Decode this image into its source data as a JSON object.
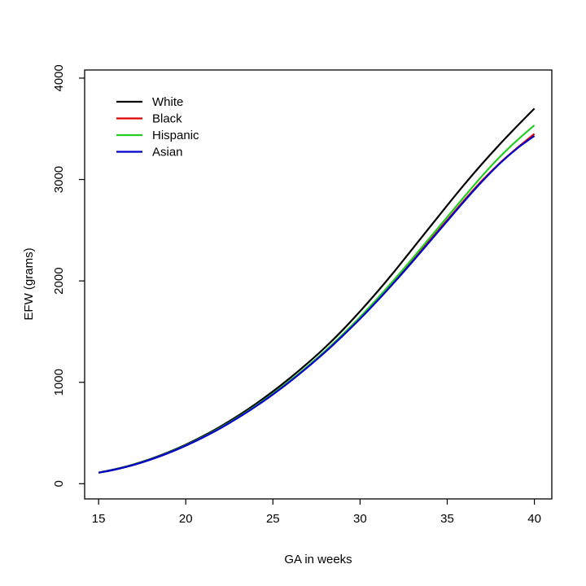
{
  "chart_data": {
    "type": "line",
    "xlabel": "GA in weeks",
    "ylabel": "EFW (grams)",
    "xlim": [
      14.2,
      41.0
    ],
    "ylim": [
      -150,
      4080
    ],
    "xticks": [
      15,
      20,
      25,
      30,
      35,
      40
    ],
    "yticks": [
      0,
      1000,
      2000,
      3000,
      4000
    ],
    "grid": false,
    "legend_position": "top-left",
    "x": [
      15,
      16,
      17,
      18,
      19,
      20,
      21,
      22,
      23,
      24,
      25,
      26,
      27,
      28,
      29,
      30,
      31,
      32,
      33,
      34,
      35,
      36,
      37,
      38,
      39,
      40
    ],
    "series": [
      {
        "name": "White",
        "color": "#000000",
        "values": [
          110,
          145,
          190,
          245,
          310,
          385,
          470,
          565,
          670,
          785,
          910,
          1045,
          1190,
          1345,
          1515,
          1700,
          1895,
          2100,
          2315,
          2530,
          2745,
          2955,
          3155,
          3345,
          3525,
          3700
        ]
      },
      {
        "name": "Black",
        "color": "#e00000",
        "values": [
          108,
          142,
          186,
          240,
          303,
          376,
          458,
          550,
          652,
          763,
          884,
          1015,
          1155,
          1305,
          1465,
          1635,
          1815,
          2005,
          2200,
          2400,
          2600,
          2800,
          2990,
          3160,
          3310,
          3450
        ]
      },
      {
        "name": "Hispanic",
        "color": "#22cc22",
        "values": [
          109,
          143,
          187,
          241,
          305,
          378,
          461,
          553,
          655,
          767,
          888,
          1019,
          1160,
          1310,
          1472,
          1645,
          1828,
          2020,
          2220,
          2425,
          2630,
          2835,
          3035,
          3220,
          3385,
          3535
        ]
      },
      {
        "name": "Asian",
        "color": "#0000cc",
        "values": [
          108,
          142,
          185,
          239,
          302,
          375,
          457,
          548,
          650,
          760,
          880,
          1010,
          1150,
          1298,
          1458,
          1626,
          1805,
          1993,
          2188,
          2388,
          2590,
          2790,
          2980,
          3155,
          3305,
          3430
        ]
      }
    ]
  }
}
